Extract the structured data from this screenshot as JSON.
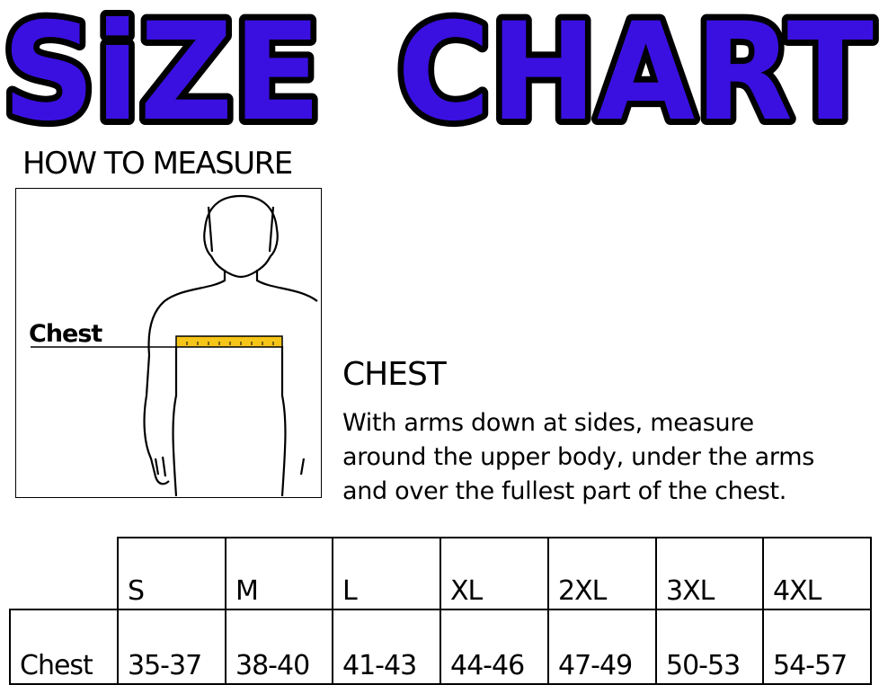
{
  "title": "SiZE CHART",
  "title_words": [
    "SiZE",
    "CHART"
  ],
  "colors": {
    "title_fill": "#3a10e0",
    "title_outline": "#000000",
    "tape": "#f5c518"
  },
  "how_to_measure": {
    "heading": "HOW TO MEASURE",
    "figure_label": "Chest"
  },
  "chest_instructions": {
    "heading": "CHEST",
    "lines": [
      "With arms down at sides, measure",
      "around the upper body, under the arms",
      "and over the fullest part of the chest."
    ]
  },
  "size_table": {
    "row_label": "Chest",
    "sizes": [
      "S",
      "M",
      "L",
      "XL",
      "2XL",
      "3XL",
      "4XL"
    ],
    "chest": [
      "35-37",
      "38-40",
      "41-43",
      "44-46",
      "47-49",
      "50-53",
      "54-57"
    ]
  }
}
